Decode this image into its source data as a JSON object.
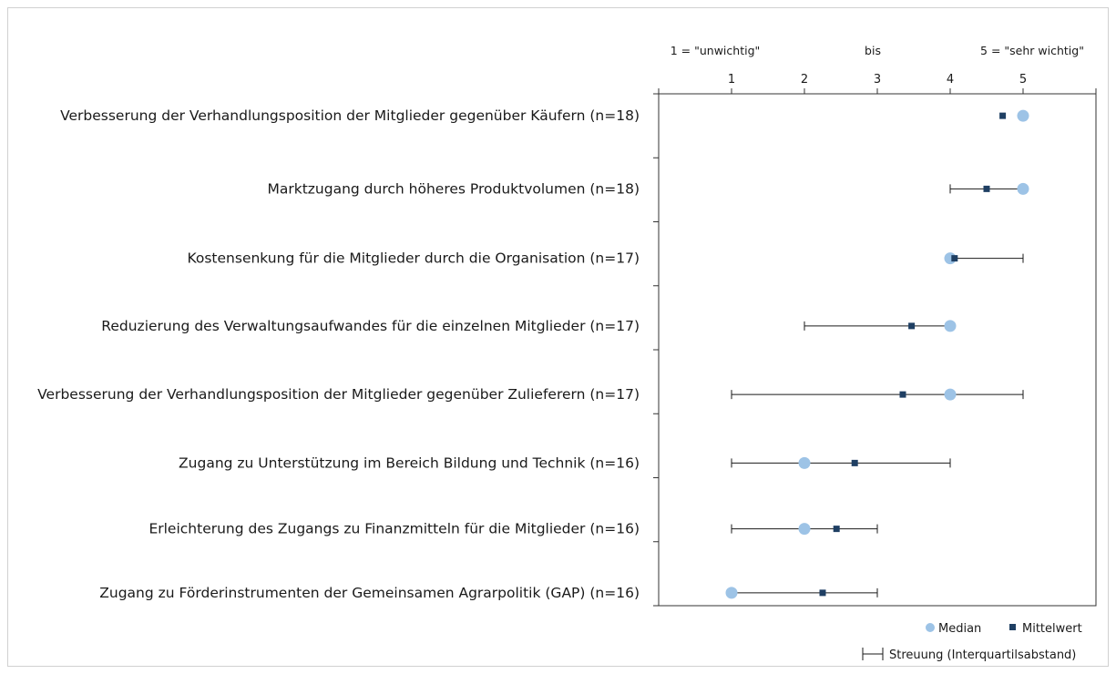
{
  "chart_data": {
    "type": "scatter",
    "orientation": "horizontal",
    "scale": {
      "left_label": "1 = \"unwichtig\"",
      "middle_label": "bis",
      "right_label": "5 = \"sehr wichtig\""
    },
    "x_ticks": [
      "1",
      "2",
      "3",
      "4",
      "5"
    ],
    "xlim": [
      0,
      6
    ],
    "categories": [
      "Verbesserung der Verhandlungsposition der Mitglieder gegenüber Käufern (n=18)",
      "Marktzugang durch höheres Produktvolumen (n=18)",
      "Kostensenkung für die Mitglieder durch die Organisation (n=17)",
      "Reduzierung des Verwaltungsaufwandes für die einzelnen Mitglieder (n=17)",
      "Verbesserung der Verhandlungsposition der Mitglieder gegenüber Zulieferern (n=17)",
      "Zugang zu Unterstützung im Bereich Bildung und Technik (n=16)",
      "Erleichterung des Zugangs zu Finanzmitteln für die Mitglieder (n=16)",
      "Zugang zu Förderinstrumenten der Gemeinsamen Agrarpolitik (GAP) (n=16)"
    ],
    "series": [
      {
        "name": "Median",
        "values": [
          5,
          5,
          4,
          4,
          4,
          2,
          2,
          1
        ]
      },
      {
        "name": "Mittelwert",
        "values": [
          4.72,
          4.5,
          4.06,
          3.47,
          3.35,
          2.69,
          2.44,
          2.25
        ]
      }
    ],
    "iqr": [
      null,
      [
        4,
        5
      ],
      [
        4,
        5
      ],
      [
        2,
        4
      ],
      [
        1,
        5
      ],
      [
        1,
        4
      ],
      [
        1,
        3
      ],
      [
        1,
        3
      ]
    ],
    "iqr_label": "Streuung (Interquartilsabstand)",
    "colors": {
      "median": "#9dc3e6",
      "mean": "#1f3f63",
      "axis": "#333333"
    },
    "legend_position": "bottom-right"
  }
}
